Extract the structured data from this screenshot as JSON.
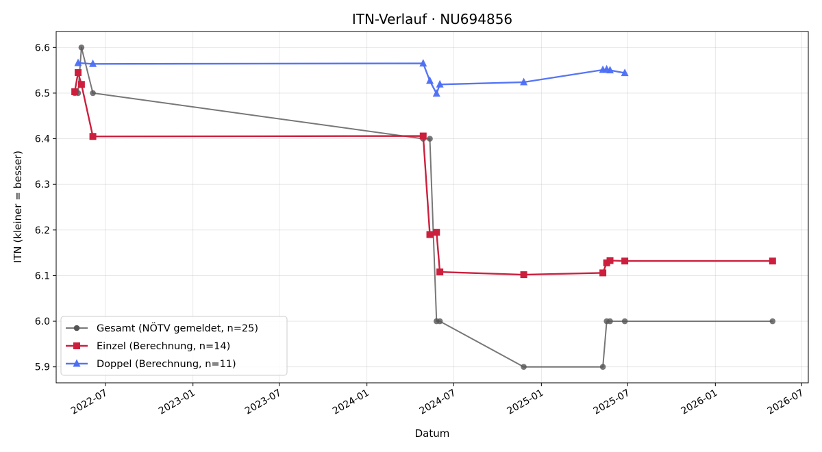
{
  "chart_data": {
    "type": "line",
    "title": "ITN-Verlauf · NU694856",
    "xlabel": "Datum",
    "ylabel": "ITN  (kleiner = besser)",
    "x_axis_type": "date",
    "xlim": [
      "2022-03-20",
      "2026-07-15"
    ],
    "ylim": [
      5.865,
      6.635
    ],
    "x_ticks": [
      "2022-07-01",
      "2023-01-01",
      "2023-07-01",
      "2024-01-01",
      "2024-07-01",
      "2025-01-01",
      "2025-07-01",
      "2026-01-01",
      "2026-07-01"
    ],
    "x_tick_labels": [
      "2022-07",
      "2023-01",
      "2023-07",
      "2024-01",
      "2024-07",
      "2025-01",
      "2025-07",
      "2026-01",
      "2026-07"
    ],
    "y_ticks": [
      5.9,
      6.0,
      6.1,
      6.2,
      6.3,
      6.4,
      6.5,
      6.6
    ],
    "y_tick_labels": [
      "5.9",
      "6.0",
      "6.1",
      "6.2",
      "6.3",
      "6.4",
      "6.5",
      "6.6"
    ],
    "grid": true,
    "legend_position": "lower-left",
    "series": [
      {
        "name": "Gesamt (NÖTV gemeldet, n=25)",
        "color": "#555555",
        "marker": "circle",
        "points": [
          {
            "x": "2022-04-28",
            "y": 6.5
          },
          {
            "x": "2022-05-05",
            "y": 6.5
          },
          {
            "x": "2022-05-12",
            "y": 6.6
          },
          {
            "x": "2022-06-05",
            "y": 6.5
          },
          {
            "x": "2024-04-28",
            "y": 6.4
          },
          {
            "x": "2024-05-12",
            "y": 6.4
          },
          {
            "x": "2024-05-26",
            "y": 6.0
          },
          {
            "x": "2024-06-02",
            "y": 6.0
          },
          {
            "x": "2024-11-25",
            "y": 5.9
          },
          {
            "x": "2025-05-10",
            "y": 5.9
          },
          {
            "x": "2025-05-18",
            "y": 6.0
          },
          {
            "x": "2025-05-25",
            "y": 6.0
          },
          {
            "x": "2025-06-25",
            "y": 6.0
          },
          {
            "x": "2026-05-01",
            "y": 6.0
          }
        ]
      },
      {
        "name": "Einzel (Berechnung, n=14)",
        "color": "#cc1f3d",
        "marker": "square",
        "points": [
          {
            "x": "2022-04-28",
            "y": 6.503
          },
          {
            "x": "2022-05-05",
            "y": 6.545
          },
          {
            "x": "2022-05-12",
            "y": 6.519
          },
          {
            "x": "2022-06-05",
            "y": 6.405
          },
          {
            "x": "2024-04-28",
            "y": 6.406
          },
          {
            "x": "2024-05-12",
            "y": 6.19
          },
          {
            "x": "2024-05-26",
            "y": 6.195
          },
          {
            "x": "2024-06-02",
            "y": 6.108
          },
          {
            "x": "2024-11-25",
            "y": 6.102
          },
          {
            "x": "2025-05-10",
            "y": 6.106
          },
          {
            "x": "2025-05-18",
            "y": 6.128
          },
          {
            "x": "2025-05-25",
            "y": 6.133
          },
          {
            "x": "2025-06-25",
            "y": 6.132
          },
          {
            "x": "2026-05-01",
            "y": 6.132
          }
        ]
      },
      {
        "name": "Doppel (Berechnung, n=11)",
        "color": "#4c6ef5",
        "marker": "triangle",
        "points": [
          {
            "x": "2022-05-05",
            "y": 6.566
          },
          {
            "x": "2022-06-05",
            "y": 6.564
          },
          {
            "x": "2024-04-28",
            "y": 6.565
          },
          {
            "x": "2024-05-12",
            "y": 6.527
          },
          {
            "x": "2024-05-26",
            "y": 6.499
          },
          {
            "x": "2024-06-02",
            "y": 6.519
          },
          {
            "x": "2024-11-25",
            "y": 6.524
          },
          {
            "x": "2025-05-10",
            "y": 6.551
          },
          {
            "x": "2025-05-18",
            "y": 6.552
          },
          {
            "x": "2025-05-25",
            "y": 6.55
          },
          {
            "x": "2025-06-25",
            "y": 6.544
          }
        ]
      }
    ]
  }
}
